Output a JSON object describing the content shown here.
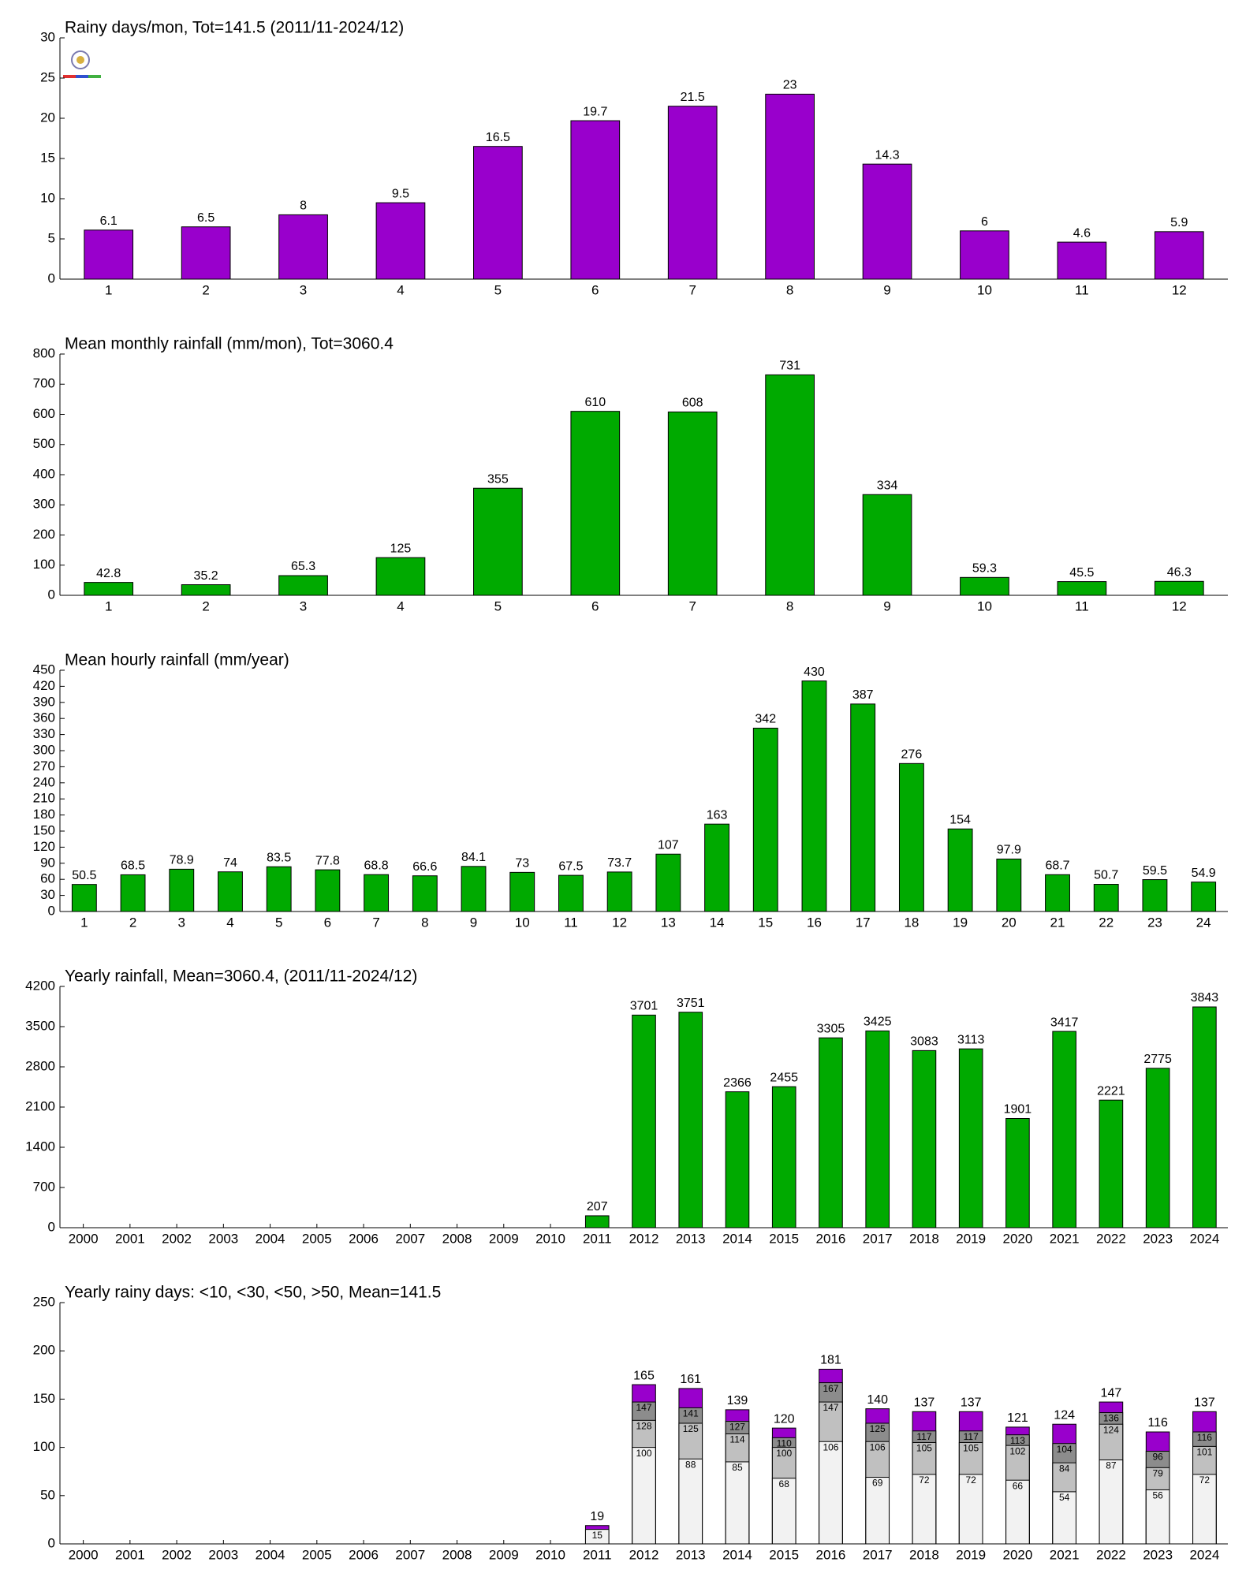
{
  "chart_data": [
    {
      "type": "bar",
      "title": "Rainy days/mon, Tot=141.5 (2011/11-2024/12)",
      "categories": [
        "1",
        "2",
        "3",
        "4",
        "5",
        "6",
        "7",
        "8",
        "9",
        "10",
        "11",
        "12"
      ],
      "values": [
        6.1,
        6.5,
        8,
        9.5,
        16.5,
        19.7,
        21.5,
        23,
        14.3,
        6,
        4.6,
        5.9
      ],
      "color": "#9900cc",
      "ylim": [
        0,
        30
      ],
      "yticks": [
        0,
        5,
        10,
        15,
        20,
        25,
        30
      ]
    },
    {
      "type": "bar",
      "title": "Mean monthly rainfall (mm/mon), Tot=3060.4",
      "categories": [
        "1",
        "2",
        "3",
        "4",
        "5",
        "6",
        "7",
        "8",
        "9",
        "10",
        "11",
        "12"
      ],
      "values": [
        42.8,
        35.2,
        65.3,
        125,
        355,
        610,
        608,
        731,
        334,
        59.3,
        45.5,
        46.3
      ],
      "color": "#00aa00",
      "ylim": [
        0,
        800
      ],
      "yticks": [
        0,
        100,
        200,
        300,
        400,
        500,
        600,
        700,
        800
      ]
    },
    {
      "type": "bar",
      "title": "Mean hourly rainfall (mm/year)",
      "categories": [
        "1",
        "2",
        "3",
        "4",
        "5",
        "6",
        "7",
        "8",
        "9",
        "10",
        "11",
        "12",
        "13",
        "14",
        "15",
        "16",
        "17",
        "18",
        "19",
        "20",
        "21",
        "22",
        "23",
        "24"
      ],
      "values": [
        50.5,
        68.5,
        78.9,
        74,
        83.5,
        77.8,
        68.8,
        66.6,
        84.1,
        73,
        67.5,
        73.7,
        107,
        163,
        342,
        430,
        387,
        276,
        154,
        97.9,
        68.7,
        50.7,
        59.5,
        54.9
      ],
      "color": "#00aa00",
      "ylim": [
        0,
        450
      ],
      "yticks": [
        0,
        30,
        60,
        90,
        120,
        150,
        180,
        210,
        240,
        270,
        300,
        330,
        360,
        390,
        420,
        450
      ]
    },
    {
      "type": "bar",
      "title": "Yearly rainfall, Mean=3060.4, (2011/11-2024/12)",
      "categories": [
        "2000",
        "2001",
        "2002",
        "2003",
        "2004",
        "2005",
        "2006",
        "2007",
        "2008",
        "2009",
        "2010",
        "2011",
        "2012",
        "2013",
        "2014",
        "2015",
        "2016",
        "2017",
        "2018",
        "2019",
        "2020",
        "2021",
        "2022",
        "2023",
        "2024"
      ],
      "values": [
        null,
        null,
        null,
        null,
        null,
        null,
        null,
        null,
        null,
        null,
        null,
        207,
        3701,
        3751,
        2366,
        2455,
        3305,
        3425,
        3083,
        3113,
        1901,
        3417,
        2221,
        2775,
        3843
      ],
      "color": "#00aa00",
      "ylim": [
        0,
        4200
      ],
      "yticks": [
        0,
        700,
        1400,
        2100,
        2800,
        3500,
        4200
      ]
    },
    {
      "type": "overlap-bar",
      "title": "Yearly rainy days: <10, <30, <50, >50, Mean=141.5",
      "categories": [
        "2000",
        "2001",
        "2002",
        "2003",
        "2004",
        "2005",
        "2006",
        "2007",
        "2008",
        "2009",
        "2010",
        "2011",
        "2012",
        "2013",
        "2014",
        "2015",
        "2016",
        "2017",
        "2018",
        "2019",
        "2020",
        "2021",
        "2022",
        "2023",
        "2024"
      ],
      "series": [
        {
          "color": "#f2f2f2",
          "values": [
            null,
            null,
            null,
            null,
            null,
            null,
            null,
            null,
            null,
            null,
            null,
            15,
            100,
            88,
            85,
            68,
            106,
            69,
            72,
            72,
            66,
            54,
            87,
            56,
            72
          ]
        },
        {
          "color": "#c0c0c0",
          "values": [
            null,
            null,
            null,
            null,
            null,
            null,
            null,
            null,
            null,
            null,
            null,
            null,
            128,
            125,
            114,
            100,
            147,
            106,
            105,
            105,
            102,
            84,
            124,
            79,
            101
          ]
        },
        {
          "color": "#8c8c8c",
          "values": [
            null,
            null,
            null,
            null,
            null,
            null,
            null,
            null,
            null,
            null,
            null,
            null,
            147,
            141,
            127,
            110,
            167,
            125,
            117,
            117,
            113,
            104,
            136,
            96,
            116
          ]
        },
        {
          "color": "#9900cc",
          "values": [
            null,
            null,
            null,
            null,
            null,
            null,
            null,
            null,
            null,
            null,
            null,
            19,
            165,
            161,
            139,
            120,
            181,
            140,
            137,
            137,
            121,
            124,
            147,
            116,
            137
          ]
        }
      ],
      "ylim": [
        0,
        250
      ],
      "yticks": [
        0,
        50,
        100,
        150,
        200,
        250
      ]
    }
  ]
}
